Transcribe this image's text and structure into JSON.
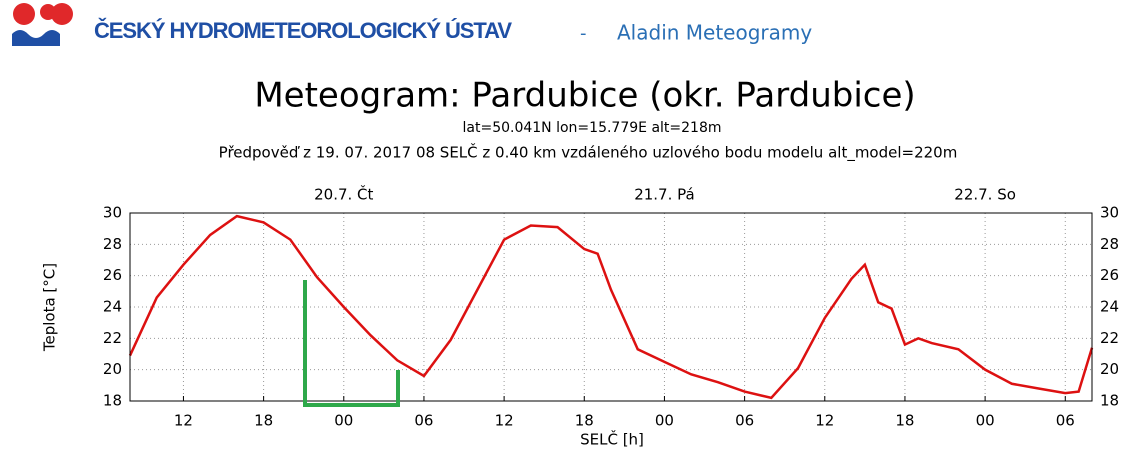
{
  "header": {
    "org": "ČESKÝ HYDROMETEOROLOGICKÝ ÚSTAV",
    "separator": "-",
    "app": "Aladin Meteogramy"
  },
  "chart_data": {
    "type": "line",
    "title": "Meteogram: Pardubice (okr. Pardubice)",
    "subtitle": "lat=50.041N lon=15.779E alt=218m",
    "subtitle2": "Předpověď z 19. 07. 2017 08 SELČ z 0.40 km vzdáleného uzlového bodu modelu alt_model=220m",
    "ylabel": "Teplota [°C]",
    "xlabel": "SELČ [h]",
    "color": "#dd1111",
    "grid": true,
    "x": [
      8,
      10,
      12,
      14,
      16,
      18,
      20,
      22,
      24,
      26,
      28,
      30,
      32,
      34,
      36,
      38,
      40,
      42,
      43,
      44,
      46,
      48,
      50,
      52,
      54,
      56,
      58,
      60,
      62,
      63,
      64,
      65,
      66,
      67,
      68,
      70,
      72,
      74,
      76,
      78,
      79,
      80
    ],
    "values": [
      20.9,
      24.6,
      26.7,
      28.6,
      29.8,
      29.4,
      28.3,
      25.9,
      24.0,
      22.2,
      20.6,
      19.6,
      21.9,
      25.1,
      28.3,
      29.2,
      29.1,
      27.7,
      27.4,
      25.1,
      21.3,
      20.5,
      19.7,
      19.2,
      18.6,
      18.2,
      20.1,
      23.3,
      25.8,
      26.7,
      24.3,
      23.9,
      21.6,
      22.0,
      21.7,
      21.3,
      20.0,
      19.1,
      18.8,
      18.5,
      18.6,
      21.4
    ],
    "xlim": [
      8,
      80
    ],
    "ylim": [
      18,
      30
    ],
    "xticks": [
      {
        "value": 12,
        "label": "12"
      },
      {
        "value": 18,
        "label": "18"
      },
      {
        "value": 24,
        "label": "00"
      },
      {
        "value": 30,
        "label": "06"
      },
      {
        "value": 36,
        "label": "12"
      },
      {
        "value": 42,
        "label": "18"
      },
      {
        "value": 48,
        "label": "00"
      },
      {
        "value": 54,
        "label": "06"
      },
      {
        "value": 60,
        "label": "12"
      },
      {
        "value": 66,
        "label": "18"
      },
      {
        "value": 72,
        "label": "00"
      },
      {
        "value": 78,
        "label": "06"
      }
    ],
    "yticks": [
      18,
      20,
      22,
      24,
      26,
      28,
      30
    ],
    "day_labels": [
      {
        "value": 24,
        "label": "20.7. Čt"
      },
      {
        "value": 48,
        "label": "21.7. Pá"
      },
      {
        "value": 72,
        "label": "22.7. So"
      }
    ]
  }
}
